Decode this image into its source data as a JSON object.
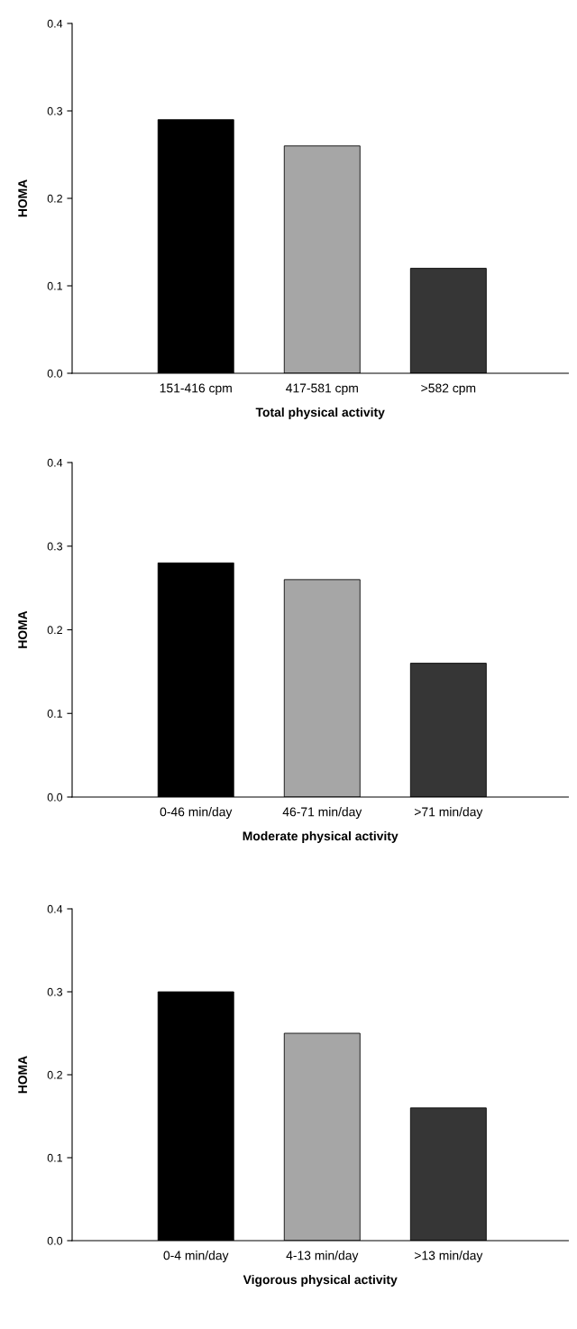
{
  "chart_data": [
    {
      "type": "bar",
      "xlabel": "Total physical activity",
      "ylabel": "HOMA",
      "categories": [
        "151-416 cpm",
        "417-581 cpm",
        ">582 cpm"
      ],
      "values": [
        0.29,
        0.26,
        0.12
      ],
      "colors": [
        "#000000",
        "#a6a6a6",
        "#363636"
      ],
      "ylim": [
        0,
        0.4
      ],
      "yticks": [
        {
          "value": 0,
          "label": "0.0"
        },
        {
          "value": 0.1,
          "label": "0.1"
        },
        {
          "value": 0.2,
          "label": "0.2"
        },
        {
          "value": 0.3,
          "label": "0.3"
        },
        {
          "value": 0.4,
          "label": "0.4"
        }
      ],
      "grid": false
    },
    {
      "type": "bar",
      "xlabel": "Moderate physical activity",
      "ylabel": "HOMA",
      "categories": [
        "0-46 min/day",
        "46-71 min/day",
        ">71 min/day"
      ],
      "values": [
        0.28,
        0.26,
        0.16
      ],
      "colors": [
        "#000000",
        "#a6a6a6",
        "#363636"
      ],
      "ylim": [
        0,
        0.4
      ],
      "yticks": [
        {
          "value": 0,
          "label": "0.0"
        },
        {
          "value": 0.1,
          "label": "0.1"
        },
        {
          "value": 0.2,
          "label": "0.2"
        },
        {
          "value": 0.3,
          "label": "0.3"
        },
        {
          "value": 0.4,
          "label": "0.4"
        }
      ],
      "grid": false
    },
    {
      "type": "bar",
      "xlabel": "Vigorous physical activity",
      "ylabel": "HOMA",
      "categories": [
        "0-4 min/day",
        "4-13 min/day",
        ">13 min/day"
      ],
      "values": [
        0.3,
        0.25,
        0.16
      ],
      "colors": [
        "#000000",
        "#a6a6a6",
        "#363636"
      ],
      "ylim": [
        0,
        0.4
      ],
      "yticks": [
        {
          "value": 0,
          "label": "0.0"
        },
        {
          "value": 0.1,
          "label": "0.1"
        },
        {
          "value": 0.2,
          "label": "0.2"
        },
        {
          "value": 0.3,
          "label": "0.3"
        },
        {
          "value": 0.4,
          "label": "0.4"
        }
      ],
      "grid": false
    }
  ]
}
